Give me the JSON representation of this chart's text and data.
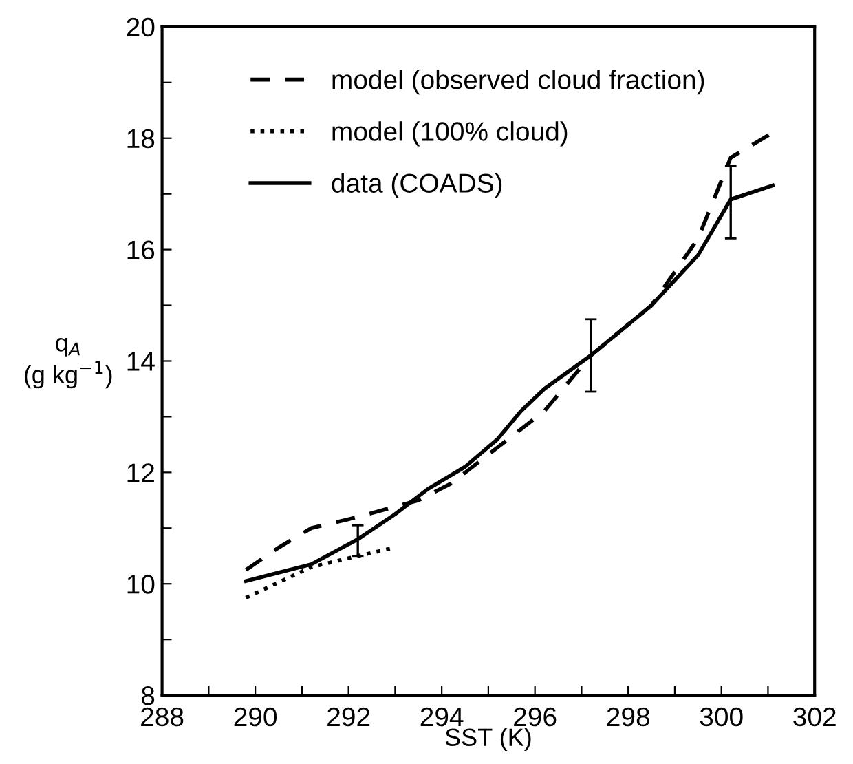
{
  "chart_data": {
    "type": "line",
    "xlabel": "SST (K)",
    "ylabel": "q$_{A}$\n(g kg$^{−1}$)",
    "xlim": [
      288,
      302
    ],
    "ylim": [
      8,
      20
    ],
    "xticks": [
      288,
      {
        "value": 289,
        "label": null
      },
      290,
      {
        "value": 291,
        "label": null
      },
      292,
      {
        "value": 293,
        "label": null
      },
      294,
      {
        "value": 295,
        "label": null
      },
      296,
      {
        "value": 297,
        "label": null
      },
      298,
      {
        "value": 299,
        "label": null
      },
      300,
      {
        "value": 301,
        "label": null
      },
      302
    ],
    "yticks": [
      8,
      {
        "value": 9,
        "label": null
      },
      10,
      {
        "value": 11,
        "label": null
      },
      12,
      {
        "value": 13,
        "label": null
      },
      14,
      {
        "value": 15,
        "label": null
      },
      16,
      {
        "value": 17,
        "label": null
      },
      18,
      {
        "value": 19,
        "label": null
      },
      20
    ],
    "grid": false,
    "legend": "top left",
    "marker": "none",
    "series": [
      {
        "name": "model (observed cloud fraction)",
        "color": "#000000",
        "line_style": "dashed",
        "x": [
          289.8,
          290.5,
          291.2,
          292.2,
          293.5,
          294.2,
          295.2,
          296.2,
          297.2,
          298.5,
          299.5,
          300.2,
          301.1
        ],
        "values": [
          10.25,
          10.65,
          11.0,
          11.2,
          11.5,
          11.8,
          12.45,
          13.1,
          14.1,
          15.0,
          16.2,
          17.65,
          18.1
        ]
      },
      {
        "name": "model (100% cloud)",
        "color": "#000000",
        "line_style": "dotted",
        "x": [
          289.8,
          291.2,
          292.2,
          293.0
        ],
        "values": [
          9.75,
          10.3,
          10.5,
          10.65
        ]
      },
      {
        "name": "data (COADS)",
        "color": "#000000",
        "line_style": "solid",
        "x": [
          289.8,
          290.5,
          291.2,
          292.2,
          293.0,
          293.7,
          294.5,
          295.2,
          295.7,
          296.2,
          297.2,
          298.5,
          299.5,
          300.2,
          301.1
        ],
        "values": [
          10.05,
          10.2,
          10.35,
          10.8,
          11.25,
          11.7,
          12.1,
          12.6,
          13.1,
          13.5,
          14.1,
          15.0,
          15.9,
          16.9,
          17.15
        ],
        "errors": [
          null,
          null,
          null,
          [
            10.5,
            11.05
          ],
          null,
          null,
          null,
          null,
          null,
          null,
          [
            13.45,
            14.75
          ],
          null,
          null,
          [
            16.2,
            17.5
          ],
          null
        ]
      }
    ]
  }
}
